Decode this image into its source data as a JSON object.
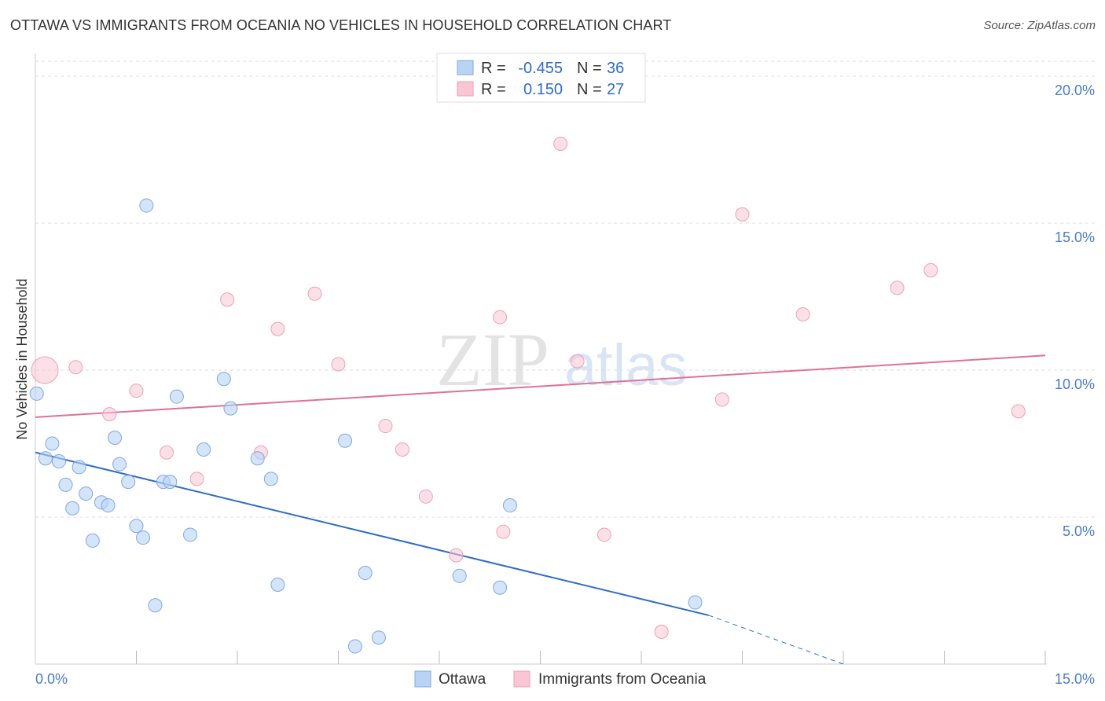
{
  "title": "OTTAWA VS IMMIGRANTS FROM OCEANIA NO VEHICLES IN HOUSEHOLD CORRELATION CHART",
  "source": "Source: ZipAtlas.com",
  "watermark": {
    "zip": "ZIP",
    "atlas": "atlas"
  },
  "legend_box": {
    "rows": [
      {
        "r_label": "R =",
        "r_value": "-0.455",
        "n_label": "N =",
        "n_value": "36"
      },
      {
        "r_label": "R =",
        "r_value": "0.150",
        "n_label": "N =",
        "n_value": "27"
      }
    ]
  },
  "colors": {
    "ottawa_fill": "#b9d3f5",
    "ottawa_stroke": "#7fa8e0",
    "ottawa_line": "#2f6cc8",
    "oceania_fill": "#f8c6d5",
    "oceania_stroke": "#eea0b8",
    "oceania_line": "#e0709a",
    "grid": "#dddddd",
    "tick_label": "#4a7cc9"
  },
  "chart_data": {
    "type": "scatter",
    "xlabel": "",
    "ylabel": "No Vehicles in Household",
    "xlim": [
      0,
      15
    ],
    "ylim": [
      0,
      20
    ],
    "x_tick_labels": [
      "0.0%",
      "15.0%"
    ],
    "y_ticks": [
      5,
      10,
      15,
      20
    ],
    "y_tick_labels": [
      "5.0%",
      "10.0%",
      "15.0%",
      "20.0%"
    ],
    "grid": true,
    "legend": "top-center and bottom",
    "series": [
      {
        "name": "Ottawa",
        "r": -0.455,
        "n": 36,
        "points": [
          [
            0.02,
            9.2
          ],
          [
            0.15,
            7.0
          ],
          [
            0.25,
            7.5
          ],
          [
            0.35,
            6.9
          ],
          [
            0.45,
            6.1
          ],
          [
            0.55,
            5.3
          ],
          [
            0.65,
            6.7
          ],
          [
            0.75,
            5.8
          ],
          [
            0.85,
            4.2
          ],
          [
            0.98,
            5.5
          ],
          [
            1.08,
            5.4
          ],
          [
            1.18,
            7.7
          ],
          [
            1.25,
            6.8
          ],
          [
            1.38,
            6.2
          ],
          [
            1.5,
            4.7
          ],
          [
            1.6,
            4.3
          ],
          [
            1.65,
            15.6
          ],
          [
            1.78,
            2.0
          ],
          [
            1.9,
            6.2
          ],
          [
            2.0,
            6.2
          ],
          [
            2.1,
            9.1
          ],
          [
            2.3,
            4.4
          ],
          [
            2.5,
            7.3
          ],
          [
            2.8,
            9.7
          ],
          [
            2.9,
            8.7
          ],
          [
            3.3,
            7.0
          ],
          [
            3.5,
            6.3
          ],
          [
            3.6,
            2.7
          ],
          [
            4.6,
            7.6
          ],
          [
            4.75,
            0.6
          ],
          [
            4.9,
            3.1
          ],
          [
            5.1,
            0.9
          ],
          [
            6.3,
            3.0
          ],
          [
            6.9,
            2.6
          ],
          [
            7.05,
            5.4
          ],
          [
            9.8,
            2.1
          ]
        ],
        "trend": {
          "x_start": 0.0,
          "y_start": 7.2,
          "x_end": 10.0,
          "y_end": 1.66,
          "dashed_to_x": 12.0,
          "dashed_to_y": 0.0
        }
      },
      {
        "name": "Immigrants from Oceania",
        "r": 0.15,
        "n": 27,
        "points": [
          [
            0.15,
            10.0
          ],
          [
            0.6,
            10.1
          ],
          [
            1.1,
            8.5
          ],
          [
            1.5,
            9.3
          ],
          [
            1.95,
            7.2
          ],
          [
            2.4,
            6.3
          ],
          [
            2.85,
            12.4
          ],
          [
            3.35,
            7.2
          ],
          [
            3.6,
            11.4
          ],
          [
            4.15,
            12.6
          ],
          [
            4.5,
            10.2
          ],
          [
            5.2,
            8.1
          ],
          [
            5.45,
            7.3
          ],
          [
            5.8,
            5.7
          ],
          [
            6.25,
            3.7
          ],
          [
            6.9,
            11.8
          ],
          [
            6.95,
            4.5
          ],
          [
            7.8,
            17.7
          ],
          [
            8.05,
            10.3
          ],
          [
            8.45,
            4.4
          ],
          [
            9.3,
            1.1
          ],
          [
            10.2,
            9.0
          ],
          [
            10.5,
            15.3
          ],
          [
            11.4,
            11.9
          ],
          [
            12.8,
            12.8
          ],
          [
            13.3,
            13.4
          ],
          [
            14.6,
            8.6
          ]
        ],
        "trend": {
          "x_start": 0.0,
          "y_start": 8.4,
          "x_end": 15.0,
          "y_end": 10.5
        }
      }
    ]
  }
}
